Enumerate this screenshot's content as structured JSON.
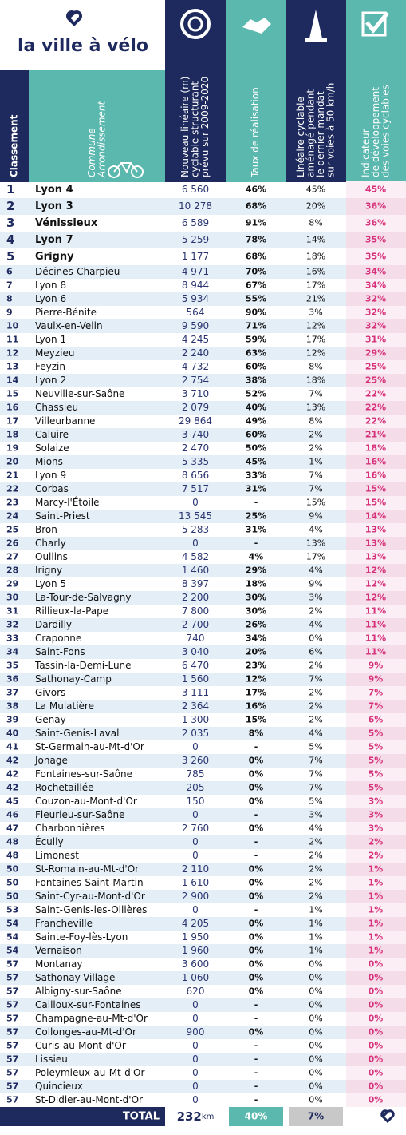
{
  "logo": "la ville à vélo",
  "headers": {
    "rank": [
      "Classement"
    ],
    "commune": [
      "Commune",
      "Arrondissement"
    ],
    "lineaire": [
      "Nouveau linéaire (m)",
      "cyclable structurant",
      "prévu sur 2009-2020"
    ],
    "taux": [
      "Taux de réalisation"
    ],
    "amenage": [
      "Linéaire cyclable",
      "aménagé pendant",
      "le dernier mandat",
      "sur voies à 50 km/h"
    ],
    "indicateur": [
      "Indicateur",
      "de développement",
      "des voies cyclables"
    ]
  },
  "table": {
    "rows": [
      [
        "1",
        "Lyon 4",
        "6 560",
        "46%",
        "45%",
        "45%"
      ],
      [
        "2",
        "Lyon 3",
        "10 278",
        "68%",
        "20%",
        "36%"
      ],
      [
        "3",
        "Vénissieux",
        "6 589",
        "91%",
        "8%",
        "36%"
      ],
      [
        "4",
        "Lyon 7",
        "5 259",
        "78%",
        "14%",
        "35%"
      ],
      [
        "5",
        "Grigny",
        "1 177",
        "68%",
        "18%",
        "35%"
      ],
      [
        "6",
        "Décines-Charpieu",
        "4 971",
        "70%",
        "16%",
        "34%"
      ],
      [
        "7",
        "Lyon 8",
        "8 944",
        "67%",
        "17%",
        "34%"
      ],
      [
        "8",
        "Lyon 6",
        "5 934",
        "55%",
        "21%",
        "32%"
      ],
      [
        "9",
        "Pierre-Bénite",
        "564",
        "90%",
        "3%",
        "32%"
      ],
      [
        "10",
        "Vaulx-en-Velin",
        "9 590",
        "71%",
        "12%",
        "32%"
      ],
      [
        "11",
        "Lyon 1",
        "4 245",
        "59%",
        "17%",
        "31%"
      ],
      [
        "12",
        "Meyzieu",
        "2 240",
        "63%",
        "12%",
        "29%"
      ],
      [
        "13",
        "Feyzin",
        "4 732",
        "60%",
        "8%",
        "25%"
      ],
      [
        "14",
        "Lyon 2",
        "2 754",
        "38%",
        "18%",
        "25%"
      ],
      [
        "15",
        "Neuville-sur-Saône",
        "3 710",
        "52%",
        "7%",
        "22%"
      ],
      [
        "16",
        "Chassieu",
        "2 079",
        "40%",
        "13%",
        "22%"
      ],
      [
        "17",
        "Villeurbanne",
        "29 864",
        "49%",
        "8%",
        "22%"
      ],
      [
        "18",
        "Caluire",
        "3 740",
        "60%",
        "2%",
        "21%"
      ],
      [
        "19",
        "Solaize",
        "2 470",
        "50%",
        "2%",
        "18%"
      ],
      [
        "20",
        "Mions",
        "5 335",
        "45%",
        "1%",
        "16%"
      ],
      [
        "21",
        "Lyon 9",
        "8 656",
        "33%",
        "7%",
        "16%"
      ],
      [
        "22",
        "Corbas",
        "7 517",
        "31%",
        "7%",
        "15%"
      ],
      [
        "23",
        "Marcy-l'Étoile",
        "0",
        "-",
        "15%",
        "15%"
      ],
      [
        "24",
        "Saint-Priest",
        "13 545",
        "25%",
        "9%",
        "14%"
      ],
      [
        "25",
        "Bron",
        "5 283",
        "31%",
        "4%",
        "13%"
      ],
      [
        "26",
        "Charly",
        "0",
        "-",
        "13%",
        "13%"
      ],
      [
        "27",
        "Oullins",
        "4 582",
        "4%",
        "17%",
        "13%"
      ],
      [
        "28",
        "Irigny",
        "1 460",
        "29%",
        "4%",
        "12%"
      ],
      [
        "29",
        "Lyon 5",
        "8 397",
        "18%",
        "9%",
        "12%"
      ],
      [
        "30",
        "La-Tour-de-Salvagny",
        "2 200",
        "30%",
        "3%",
        "12%"
      ],
      [
        "31",
        "Rillieux-la-Pape",
        "7 800",
        "30%",
        "2%",
        "11%"
      ],
      [
        "32",
        "Dardilly",
        "2 700",
        "26%",
        "4%",
        "11%"
      ],
      [
        "33",
        "Craponne",
        "740",
        "34%",
        "0%",
        "11%"
      ],
      [
        "34",
        "Saint-Fons",
        "3 040",
        "20%",
        "6%",
        "11%"
      ],
      [
        "35",
        "Tassin-la-Demi-Lune",
        "6 470",
        "23%",
        "2%",
        "9%"
      ],
      [
        "36",
        "Sathonay-Camp",
        "1 560",
        "12%",
        "7%",
        "9%"
      ],
      [
        "37",
        "Givors",
        "3 111",
        "17%",
        "2%",
        "7%"
      ],
      [
        "38",
        "La Mulatière",
        "2 364",
        "16%",
        "2%",
        "7%"
      ],
      [
        "39",
        "Genay",
        "1 300",
        "15%",
        "2%",
        "6%"
      ],
      [
        "40",
        "Saint-Genis-Laval",
        "2 035",
        "8%",
        "4%",
        "5%"
      ],
      [
        "41",
        "St-Germain-au-Mt-d'Or",
        "0",
        "-",
        "5%",
        "5%"
      ],
      [
        "42",
        "Jonage",
        "3 260",
        "0%",
        "7%",
        "5%"
      ],
      [
        "42",
        "Fontaines-sur-Saône",
        "785",
        "0%",
        "7%",
        "5%"
      ],
      [
        "42",
        "Rochetaillée",
        "205",
        "0%",
        "7%",
        "5%"
      ],
      [
        "45",
        "Couzon-au-Mont-d'Or",
        "150",
        "0%",
        "5%",
        "3%"
      ],
      [
        "46",
        "Fleurieu-sur-Saône",
        "0",
        "-",
        "3%",
        "3%"
      ],
      [
        "47",
        "Charbonnières",
        "2 760",
        "0%",
        "4%",
        "3%"
      ],
      [
        "48",
        "Écully",
        "0",
        "-",
        "2%",
        "2%"
      ],
      [
        "48",
        "Limonest",
        "0",
        "-",
        "2%",
        "2%"
      ],
      [
        "50",
        "St-Romain-au-Mt-d'Or",
        "2 110",
        "0%",
        "2%",
        "1%"
      ],
      [
        "50",
        "Fontaines-Saint-Martin",
        "1 610",
        "0%",
        "2%",
        "1%"
      ],
      [
        "50",
        "Saint-Cyr-au-Mont-d'Or",
        "2 900",
        "0%",
        "2%",
        "1%"
      ],
      [
        "53",
        "Saint-Genis-les-Ollières",
        "0",
        "-",
        "1%",
        "1%"
      ],
      [
        "54",
        "Francheville",
        "4 205",
        "0%",
        "1%",
        "1%"
      ],
      [
        "54",
        "Sainte-Foy-lès-Lyon",
        "1 950",
        "0%",
        "1%",
        "1%"
      ],
      [
        "54",
        "Vernaison",
        "1 960",
        "0%",
        "1%",
        "1%"
      ],
      [
        "57",
        "Montanay",
        "3 600",
        "0%",
        "0%",
        "0%"
      ],
      [
        "57",
        "Sathonay-Village",
        "1 060",
        "0%",
        "0%",
        "0%"
      ],
      [
        "57",
        "Albigny-sur-Saône",
        "620",
        "0%",
        "0%",
        "0%"
      ],
      [
        "57",
        "Cailloux-sur-Fontaines",
        "0",
        "-",
        "0%",
        "0%"
      ],
      [
        "57",
        "Champagne-au-Mt-d'Or",
        "0",
        "-",
        "0%",
        "0%"
      ],
      [
        "57",
        "Collonges-au-Mt-d'Or",
        "900",
        "0%",
        "0%",
        "0%"
      ],
      [
        "57",
        "Curis-au-Mont-d'Or",
        "0",
        "-",
        "0%",
        "0%"
      ],
      [
        "57",
        "Lissieu",
        "0",
        "-",
        "0%",
        "0%"
      ],
      [
        "57",
        "Poleymieux-au-Mt-d'Or",
        "0",
        "-",
        "0%",
        "0%"
      ],
      [
        "57",
        "Quincieux",
        "0",
        "-",
        "0%",
        "0%"
      ],
      [
        "57",
        "St-Didier-au-Mont-d'Or",
        "0",
        "-",
        "0%",
        "0%"
      ]
    ]
  },
  "total": {
    "label": "TOTAL",
    "value": "232",
    "unit": "km",
    "taux": "40%",
    "amenage": "7%"
  }
}
